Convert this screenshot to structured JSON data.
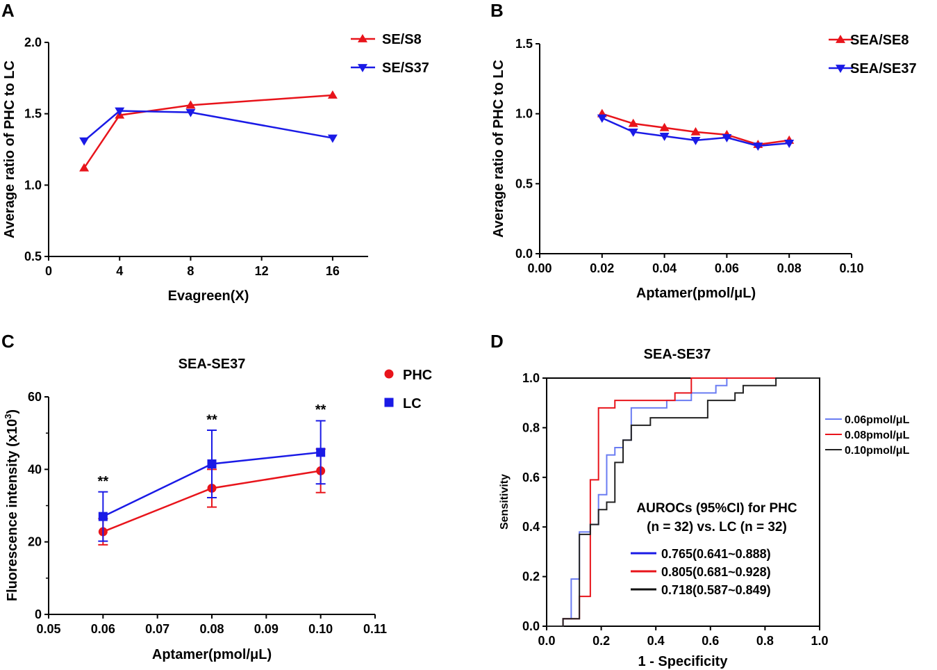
{
  "chart_data": [
    {
      "panel": "A",
      "type": "line",
      "title": "",
      "xlabel": "Evagreen(X)",
      "ylabel": "Average ratio of PHC to LC",
      "xlim": [
        0,
        18
      ],
      "ylim": [
        0.5,
        2.0
      ],
      "xticks": [
        0,
        4,
        8,
        12,
        16
      ],
      "xtick_labels": [
        "0",
        "4",
        "8",
        "12",
        "16"
      ],
      "yticks": [
        0.5,
        1.0,
        1.5,
        2.0
      ],
      "ytick_labels": [
        "0.5",
        "1.0",
        "1.5",
        "2.0"
      ],
      "legend_position": "top-right-outside",
      "series": [
        {
          "name": "SE/S8",
          "color": "#e8141b",
          "marker": "triangle-up",
          "x": [
            2,
            4,
            8,
            16
          ],
          "values": [
            1.12,
            1.49,
            1.56,
            1.63
          ]
        },
        {
          "name": "SE/S37",
          "color": "#1a1ae6",
          "marker": "triangle-down",
          "x": [
            2,
            4,
            8,
            16
          ],
          "values": [
            1.31,
            1.52,
            1.51,
            1.33
          ]
        }
      ]
    },
    {
      "panel": "B",
      "type": "line",
      "title": "",
      "xlabel": "Aptamer(pmol/μL)",
      "ylabel": "Average ratio of PHC to LC",
      "xlim": [
        0.0,
        0.1
      ],
      "ylim": [
        0.0,
        1.5
      ],
      "xticks": [
        0.0,
        0.02,
        0.04,
        0.06,
        0.08,
        0.1
      ],
      "xtick_labels": [
        "0.00",
        "0.02",
        "0.04",
        "0.06",
        "0.08",
        "0.10"
      ],
      "yticks": [
        0.0,
        0.5,
        1.0,
        1.5
      ],
      "ytick_labels": [
        "0.0",
        "0.5",
        "1.0",
        "1.5"
      ],
      "legend_position": "top-right-outside",
      "series": [
        {
          "name": "SEA/SE8",
          "color": "#e8141b",
          "marker": "triangle-up",
          "x": [
            0.02,
            0.03,
            0.04,
            0.05,
            0.06,
            0.07,
            0.08
          ],
          "values": [
            1.0,
            0.93,
            0.9,
            0.87,
            0.85,
            0.78,
            0.81
          ]
        },
        {
          "name": "SEA/SE37",
          "color": "#1a1ae6",
          "marker": "triangle-down",
          "x": [
            0.02,
            0.03,
            0.04,
            0.05,
            0.06,
            0.07,
            0.08
          ],
          "values": [
            0.97,
            0.87,
            0.84,
            0.81,
            0.83,
            0.77,
            0.79
          ]
        }
      ]
    },
    {
      "panel": "C",
      "type": "line",
      "title": "SEA-SE37",
      "xlabel": "Aptamer(pmol/μL)",
      "ylabel_main": "Fluorescence intensity (x10",
      "ylabel_sup": "3",
      "ylabel_end": ")",
      "xlim": [
        0.05,
        0.11
      ],
      "ylim": [
        0,
        60
      ],
      "xticks": [
        0.05,
        0.06,
        0.07,
        0.08,
        0.09,
        0.1,
        0.11
      ],
      "xtick_labels": [
        "0.05",
        "0.06",
        "0.07",
        "0.08",
        "0.09",
        "0.10",
        "0.11"
      ],
      "yticks": [
        0,
        20,
        40,
        60
      ],
      "ytick_labels": [
        "0",
        "20",
        "40",
        "60"
      ],
      "legend_position": "top-right-outside",
      "annotations": [
        {
          "x": 0.06,
          "y": 33.5,
          "text": "**"
        },
        {
          "x": 0.08,
          "y": 50.5,
          "text": "**"
        },
        {
          "x": 0.1,
          "y": 53.3,
          "text": "**"
        }
      ],
      "series": [
        {
          "name": "PHC",
          "color": "#e8141b",
          "marker": "circle",
          "x": [
            0.06,
            0.08,
            0.1
          ],
          "values": [
            22.8,
            34.8,
            39.6
          ],
          "err": [
            3.6,
            5.2,
            6.0
          ]
        },
        {
          "name": "LC",
          "color": "#1a1ae6",
          "marker": "square",
          "x": [
            0.06,
            0.08,
            0.1
          ],
          "values": [
            27.0,
            41.5,
            44.7
          ],
          "err": [
            6.8,
            9.3,
            8.7
          ]
        }
      ]
    },
    {
      "panel": "D",
      "type": "line",
      "title": "SEA-SE37",
      "xlabel": "1 - Specificity",
      "ylabel": "Sensitivity",
      "xlim": [
        0,
        1
      ],
      "ylim": [
        0,
        1
      ],
      "xticks": [
        0,
        0.2,
        0.4,
        0.6,
        0.8,
        1.0
      ],
      "xtick_labels": [
        "0.0",
        "0.2",
        "0.4",
        "0.6",
        "0.8",
        "1.0"
      ],
      "yticks": [
        0,
        0.2,
        0.4,
        0.6,
        0.8,
        1.0
      ],
      "ytick_labels": [
        "0.0",
        "0.2",
        "0.4",
        "0.6",
        "0.8",
        "1.0"
      ],
      "legend_position": "right-outside",
      "auroc_title_line1": "AUROCs (95%CI)  for PHC",
      "auroc_title_line2": "(n = 32) vs. LC (n = 32)",
      "series": [
        {
          "name": "0.06pmol/μL",
          "auc": "0.765(0.641~0.888)",
          "color": "#6a7cf2",
          "auc_color": "#1a1ae6",
          "x": [
            0,
            0.06,
            0.06,
            0.09,
            0.09,
            0.12,
            0.12,
            0.16,
            0.16,
            0.19,
            0.19,
            0.22,
            0.22,
            0.25,
            0.25,
            0.28,
            0.28,
            0.31,
            0.31,
            0.44,
            0.44,
            0.53,
            0.53,
            0.62,
            0.62,
            0.66,
            0.66,
            1.0
          ],
          "values": [
            0,
            0,
            0.03,
            0.03,
            0.19,
            0.19,
            0.38,
            0.38,
            0.41,
            0.41,
            0.53,
            0.53,
            0.69,
            0.69,
            0.72,
            0.72,
            0.75,
            0.75,
            0.88,
            0.88,
            0.91,
            0.91,
            0.94,
            0.94,
            0.97,
            0.97,
            1.0,
            1.0
          ]
        },
        {
          "name": "0.08pmol/μL",
          "auc": "0.805(0.681~0.928)",
          "color": "#e8141b",
          "auc_color": "#e8141b",
          "x": [
            0,
            0.06,
            0.06,
            0.12,
            0.12,
            0.16,
            0.16,
            0.19,
            0.19,
            0.25,
            0.25,
            0.47,
            0.47,
            0.53,
            0.53,
            1.0
          ],
          "values": [
            0,
            0,
            0.03,
            0.03,
            0.12,
            0.12,
            0.59,
            0.59,
            0.88,
            0.88,
            0.91,
            0.91,
            0.94,
            0.94,
            1.0,
            1.0
          ]
        },
        {
          "name": "0.10pmol/μL",
          "auc": "0.718(0.587~0.849)",
          "color": "#222222",
          "auc_color": "#111111",
          "x": [
            0,
            0.06,
            0.06,
            0.12,
            0.12,
            0.16,
            0.16,
            0.19,
            0.19,
            0.22,
            0.22,
            0.25,
            0.25,
            0.28,
            0.28,
            0.31,
            0.31,
            0.38,
            0.38,
            0.59,
            0.59,
            0.69,
            0.69,
            0.72,
            0.72,
            0.84,
            0.84,
            1.0
          ],
          "values": [
            0,
            0,
            0.03,
            0.03,
            0.37,
            0.37,
            0.41,
            0.41,
            0.47,
            0.47,
            0.5,
            0.5,
            0.66,
            0.66,
            0.75,
            0.75,
            0.81,
            0.81,
            0.84,
            0.84,
            0.91,
            0.91,
            0.94,
            0.94,
            0.97,
            0.97,
            1.0,
            1.0
          ]
        }
      ]
    }
  ]
}
